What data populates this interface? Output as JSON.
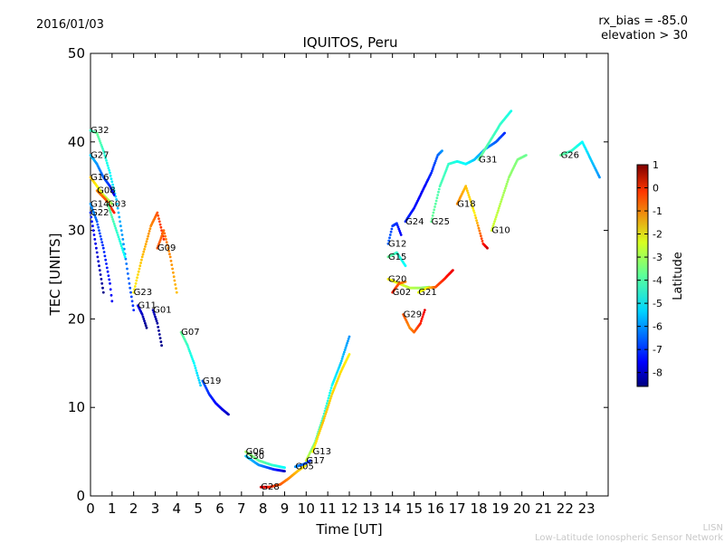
{
  "header": {
    "date": "2016/01/03",
    "rx_bias": "rx_bias = -85.0",
    "elevation": "elevation > 30"
  },
  "footer": {
    "line1": "LISN",
    "line2": "Low-Latitude Ionospheric Sensor Network"
  },
  "chart_data": {
    "type": "scatter",
    "title": "IQUITOS, Peru",
    "xlabel": "Time [UT]",
    "ylabel": "TEC [UNITS]",
    "xlim": [
      0,
      24
    ],
    "ylim": [
      0,
      50
    ],
    "xticks": [
      0,
      1,
      2,
      3,
      4,
      5,
      6,
      7,
      8,
      9,
      10,
      11,
      12,
      13,
      14,
      15,
      16,
      17,
      18,
      19,
      20,
      21,
      22,
      23
    ],
    "yticks": [
      0,
      10,
      20,
      30,
      40,
      50
    ],
    "grid": false,
    "colorbar": {
      "label": "Latitude",
      "min": -8.6,
      "max": 1.0,
      "ticks": [
        1,
        0,
        -1,
        -2,
        -3,
        -4,
        -5,
        -6,
        -7,
        -8
      ]
    },
    "series": [
      {
        "name": "G32",
        "points": [
          [
            0.0,
            41.3,
            -4.5
          ],
          [
            0.3,
            41.0,
            -4.0
          ],
          [
            0.6,
            39.0,
            -4.5
          ],
          [
            0.9,
            36.5,
            -5.0
          ],
          [
            1.2,
            33.5,
            -5.5
          ],
          [
            1.5,
            29.0,
            -6.0
          ],
          [
            1.8,
            24.0,
            -6.5
          ],
          [
            2.0,
            21.0,
            -7.0
          ]
        ]
      },
      {
        "name": "G27",
        "points": [
          [
            0.0,
            38.5,
            -5.5
          ],
          [
            0.3,
            37.5,
            -6.0
          ],
          [
            0.6,
            36.0,
            -6.5
          ],
          [
            0.9,
            35.0,
            -7.0
          ],
          [
            1.1,
            34.0,
            -7.5
          ]
        ]
      },
      {
        "name": "G16",
        "points": [
          [
            0.0,
            36.0,
            -2.0
          ],
          [
            0.3,
            35.0,
            -2.5
          ],
          [
            0.6,
            34.0,
            -3.0
          ],
          [
            1.0,
            33.0,
            -3.5
          ]
        ]
      },
      {
        "name": "G08",
        "points": [
          [
            0.3,
            34.5,
            -1.5
          ],
          [
            0.7,
            33.5,
            -1.0
          ],
          [
            1.1,
            32.0,
            -0.5
          ]
        ]
      },
      {
        "name": "G22",
        "points": [
          [
            0.0,
            32.0,
            -7.0
          ],
          [
            0.2,
            29.0,
            -7.5
          ],
          [
            0.4,
            26.0,
            -8.0
          ],
          [
            0.6,
            23.0,
            -8.5
          ]
        ]
      },
      {
        "name": "G14",
        "points": [
          [
            0.0,
            33.0,
            -6.0
          ],
          [
            0.3,
            31.0,
            -6.5
          ],
          [
            0.6,
            28.0,
            -7.0
          ],
          [
            0.9,
            24.0,
            -7.3
          ],
          [
            1.0,
            22.0,
            -7.5
          ]
        ]
      },
      {
        "name": "G03",
        "points": [
          [
            0.8,
            33.0,
            -4.0
          ],
          [
            1.2,
            30.0,
            -4.5
          ],
          [
            1.6,
            27.0,
            -5.0
          ]
        ]
      },
      {
        "name": "G23",
        "points": [
          [
            2.0,
            23.0,
            -2.5
          ],
          [
            2.4,
            27.0,
            -2.0
          ],
          [
            2.8,
            30.5,
            -1.5
          ],
          [
            3.1,
            32.0,
            -1.0
          ],
          [
            3.4,
            29.0,
            -0.5
          ]
        ]
      },
      {
        "name": "G09",
        "points": [
          [
            3.1,
            28.0,
            -1.0
          ],
          [
            3.4,
            30.0,
            -1.2
          ],
          [
            3.7,
            27.0,
            -1.5
          ],
          [
            4.0,
            23.0,
            -2.0
          ]
        ]
      },
      {
        "name": "G11",
        "points": [
          [
            2.2,
            21.5,
            -7.5
          ],
          [
            2.4,
            20.5,
            -8.0
          ],
          [
            2.6,
            19.0,
            -8.5
          ]
        ]
      },
      {
        "name": "G01",
        "points": [
          [
            2.9,
            21.0,
            -8.0
          ],
          [
            3.1,
            19.5,
            -8.3
          ],
          [
            3.3,
            17.0,
            -8.5
          ]
        ]
      },
      {
        "name": "G07",
        "points": [
          [
            4.2,
            18.5,
            -4.0
          ],
          [
            4.5,
            17.0,
            -4.5
          ],
          [
            4.8,
            15.0,
            -5.0
          ],
          [
            5.1,
            12.5,
            -5.5
          ]
        ]
      },
      {
        "name": "G19",
        "points": [
          [
            5.2,
            13.0,
            -6.5
          ],
          [
            5.5,
            11.5,
            -7.0
          ],
          [
            5.8,
            10.5,
            -7.3
          ],
          [
            6.1,
            9.8,
            -7.6
          ],
          [
            6.4,
            9.2,
            -8.0
          ]
        ]
      },
      {
        "name": "G06",
        "points": [
          [
            7.2,
            5.0,
            -3.5
          ],
          [
            7.8,
            4.0,
            -4.0
          ],
          [
            8.4,
            3.5,
            -4.5
          ],
          [
            9.0,
            3.2,
            -5.0
          ]
        ]
      },
      {
        "name": "G30",
        "points": [
          [
            7.2,
            4.5,
            -5.5
          ],
          [
            7.8,
            3.5,
            -6.0
          ],
          [
            8.5,
            3.0,
            -7.0
          ],
          [
            9.0,
            2.8,
            -8.0
          ]
        ]
      },
      {
        "name": "G28",
        "points": [
          [
            7.9,
            1.0,
            0.2
          ],
          [
            8.3,
            1.0,
            -0.5
          ],
          [
            8.8,
            1.3,
            -1.0
          ],
          [
            9.2,
            2.0,
            -1.5
          ],
          [
            9.6,
            2.8,
            -2.0
          ],
          [
            10.0,
            3.5,
            -2.5
          ]
        ]
      },
      {
        "name": "G05",
        "points": [
          [
            9.5,
            3.3,
            -6.0
          ],
          [
            9.9,
            3.6,
            -6.5
          ],
          [
            10.2,
            4.0,
            -7.0
          ]
        ]
      },
      {
        "name": "G17",
        "points": [
          [
            10.0,
            4.0,
            -3.0
          ],
          [
            10.4,
            6.0,
            -4.0
          ],
          [
            10.8,
            9.0,
            -4.5
          ],
          [
            11.2,
            12.5,
            -5.0
          ],
          [
            11.6,
            15.0,
            -5.5
          ],
          [
            12.0,
            18.0,
            -6.0
          ]
        ]
      },
      {
        "name": "G13",
        "points": [
          [
            10.3,
            5.0,
            -2.5
          ],
          [
            10.8,
            8.5,
            -2.0
          ],
          [
            11.2,
            11.5,
            -2.2
          ],
          [
            11.6,
            14.0,
            -2.3
          ],
          [
            12.0,
            16.0,
            -2.5
          ]
        ]
      },
      {
        "name": "G12",
        "points": [
          [
            13.8,
            28.5,
            -6.5
          ],
          [
            14.0,
            30.5,
            -6.8
          ],
          [
            14.2,
            30.8,
            -7.0
          ],
          [
            14.4,
            29.5,
            -7.5
          ]
        ]
      },
      {
        "name": "G15",
        "points": [
          [
            13.8,
            27.0,
            -4.0
          ],
          [
            14.2,
            27.5,
            -4.5
          ],
          [
            14.6,
            26.0,
            -5.0
          ]
        ]
      },
      {
        "name": "G20",
        "points": [
          [
            13.8,
            24.5,
            -2.5
          ],
          [
            14.3,
            24.0,
            -2.8
          ],
          [
            14.8,
            23.5,
            -3.2
          ],
          [
            15.3,
            23.5,
            -3.5
          ],
          [
            15.7,
            23.6,
            -3.8
          ]
        ]
      },
      {
        "name": "G02",
        "points": [
          [
            14.0,
            23.0,
            -0.5
          ],
          [
            14.3,
            24.0,
            -1.0
          ],
          [
            14.6,
            24.2,
            -1.5
          ]
        ]
      },
      {
        "name": "G29",
        "points": [
          [
            14.5,
            20.5,
            -1.0
          ],
          [
            14.8,
            19.0,
            -1.5
          ],
          [
            15.0,
            18.5,
            -1.2
          ],
          [
            15.3,
            19.5,
            -0.5
          ],
          [
            15.5,
            21.0,
            0.0
          ]
        ]
      },
      {
        "name": "G24",
        "points": [
          [
            14.6,
            31.0,
            -7.0
          ],
          [
            15.0,
            32.5,
            -7.3
          ],
          [
            15.4,
            34.5,
            -7.5
          ],
          [
            15.8,
            36.5,
            -7.0
          ],
          [
            16.1,
            38.5,
            -6.5
          ],
          [
            16.3,
            39.0,
            -6.0
          ]
        ]
      },
      {
        "name": "G21",
        "points": [
          [
            15.2,
            23.0,
            -2.8
          ],
          [
            15.6,
            23.5,
            -2.5
          ],
          [
            16.0,
            23.6,
            -1.0
          ],
          [
            16.4,
            24.5,
            -0.5
          ],
          [
            16.8,
            25.5,
            0.0
          ]
        ]
      },
      {
        "name": "G25",
        "points": [
          [
            15.8,
            31.0,
            -4.0
          ],
          [
            16.2,
            35.0,
            -4.3
          ],
          [
            16.6,
            37.5,
            -4.5
          ],
          [
            17.0,
            37.8,
            -4.8
          ],
          [
            17.4,
            37.5,
            -5.0
          ],
          [
            17.8,
            38.0,
            -5.5
          ],
          [
            18.3,
            39.2,
            -6.0
          ],
          [
            18.8,
            40.0,
            -6.5
          ],
          [
            19.2,
            41.0,
            -7.0
          ]
        ]
      },
      {
        "name": "G31",
        "points": [
          [
            18.0,
            38.0,
            -4.0
          ],
          [
            18.5,
            40.0,
            -4.3
          ],
          [
            19.0,
            42.0,
            -4.5
          ],
          [
            19.5,
            43.5,
            -4.8
          ]
        ]
      },
      {
        "name": "G18",
        "points": [
          [
            17.0,
            33.0,
            -1.5
          ],
          [
            17.4,
            35.0,
            -2.0
          ],
          [
            17.8,
            32.0,
            -2.5
          ],
          [
            18.2,
            28.5,
            -0.5
          ],
          [
            18.4,
            28.0,
            0.3
          ]
        ]
      },
      {
        "name": "G10",
        "points": [
          [
            18.6,
            30.0,
            -3.0
          ],
          [
            19.0,
            33.0,
            -3.3
          ],
          [
            19.4,
            36.0,
            -3.6
          ],
          [
            19.8,
            38.0,
            -3.8
          ],
          [
            20.2,
            38.5,
            -4.0
          ]
        ]
      },
      {
        "name": "G26",
        "points": [
          [
            21.8,
            38.5,
            -4.0
          ],
          [
            22.3,
            39.0,
            -4.5
          ],
          [
            22.8,
            40.0,
            -5.0
          ],
          [
            23.2,
            38.0,
            -5.5
          ],
          [
            23.6,
            36.0,
            -6.0
          ]
        ]
      }
    ]
  }
}
